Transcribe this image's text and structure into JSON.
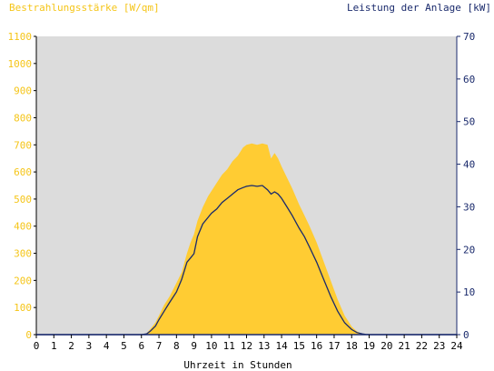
{
  "chart_data": {
    "type": "area",
    "left_axis_title": "Bestrahlungsstärke [W/qm]",
    "right_axis_title": "Leistung der Anlage [kW]",
    "xlabel": "Uhrzeit in Stunden",
    "xlim": [
      0,
      24
    ],
    "ylim_left": [
      0,
      1100
    ],
    "ylim_right": [
      0,
      70
    ],
    "x_ticks": [
      "0",
      "1",
      "2",
      "3",
      "4",
      "5",
      "6",
      "7",
      "8",
      "9",
      "10",
      "11",
      "12",
      "13",
      "14",
      "15",
      "16",
      "17",
      "18",
      "19",
      "20",
      "21",
      "22",
      "23",
      "24"
    ],
    "y_left_ticks": [
      "0",
      "100",
      "200",
      "300",
      "400",
      "500",
      "600",
      "700",
      "800",
      "900",
      "1000",
      "1100"
    ],
    "y_right_ticks": [
      "0",
      "10",
      "20",
      "30",
      "40",
      "50",
      "60",
      "70"
    ],
    "grid": false,
    "colors": {
      "irradiance_fill": "#FFCC33",
      "power_line": "#1A2A6C",
      "left_axis_text": "#F5C518",
      "right_axis_text": "#1A2A6C",
      "plot_background": "#DCDCDC"
    },
    "series": [
      {
        "axis": "left",
        "style": "area",
        "x": [
          0,
          6,
          6.3,
          6.5,
          6.8,
          7,
          7.3,
          7.6,
          8,
          8.3,
          8.6,
          8.8,
          9,
          9.2,
          9.5,
          9.8,
          10,
          10.3,
          10.6,
          10.9,
          11.2,
          11.5,
          11.8,
          12,
          12.3,
          12.6,
          12.9,
          13.2,
          13.4,
          13.6,
          13.8,
          14,
          14.3,
          14.6,
          15,
          15.3,
          15.6,
          16,
          16.4,
          16.8,
          17.2,
          17.6,
          18,
          18.3,
          18.6,
          18.8,
          19,
          24
        ],
        "values": [
          0,
          0,
          5,
          20,
          45,
          70,
          110,
          140,
          190,
          230,
          300,
          340,
          370,
          420,
          470,
          510,
          530,
          560,
          590,
          610,
          640,
          660,
          690,
          700,
          705,
          700,
          705,
          700,
          650,
          670,
          650,
          620,
          580,
          540,
          480,
          440,
          400,
          340,
          270,
          200,
          130,
          70,
          30,
          12,
          3,
          1,
          0,
          0
        ]
      },
      {
        "axis": "right",
        "style": "line",
        "x": [
          0,
          6,
          6.3,
          6.5,
          6.8,
          7,
          7.3,
          7.6,
          8,
          8.3,
          8.6,
          8.8,
          9,
          9.2,
          9.5,
          9.8,
          10,
          10.3,
          10.6,
          10.9,
          11.2,
          11.5,
          11.8,
          12,
          12.3,
          12.6,
          12.9,
          13.2,
          13.4,
          13.6,
          13.8,
          14,
          14.3,
          14.6,
          15,
          15.3,
          15.6,
          16,
          16.4,
          16.8,
          17.2,
          17.6,
          18,
          18.3,
          18.6,
          18.8,
          19,
          24
        ],
        "values": [
          0,
          0,
          0.2,
          0.8,
          2,
          3.5,
          5.5,
          7.5,
          10,
          13,
          17,
          18,
          19,
          23,
          26,
          27.5,
          28.5,
          29.5,
          31,
          32,
          33,
          34,
          34.5,
          34.8,
          35,
          34.8,
          35,
          34,
          33,
          33.5,
          33,
          32,
          30,
          28,
          25,
          23,
          20.5,
          17,
          13,
          9,
          5.5,
          2.8,
          1.2,
          0.5,
          0.2,
          0.05,
          0,
          0
        ]
      }
    ]
  }
}
